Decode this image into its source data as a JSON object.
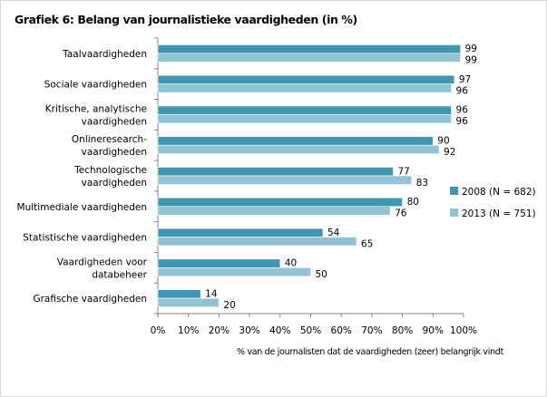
{
  "chart_data": {
    "type": "bar",
    "orientation": "horizontal",
    "title": "Grafiek 6: Belang van journalistieke vaardigheden (in %)",
    "xlabel": "% van de journalisten dat de vaardigheden (zeer) belangrijk vindt",
    "ylabel": "",
    "xlim": [
      0,
      100
    ],
    "x_ticks": [
      "0%",
      "10%",
      "20%",
      "30%",
      "40%",
      "50%",
      "60%",
      "70%",
      "80%",
      "90%",
      "100%"
    ],
    "grid": false,
    "legend_position": "right",
    "categories": [
      [
        "Taalvaardigheden"
      ],
      [
        "Sociale vaardigheden"
      ],
      [
        "Kritische, analytische",
        "vaardigheden"
      ],
      [
        "Onlineresearch-",
        "vaardigheden"
      ],
      [
        "Technologische",
        "vaardigheden"
      ],
      [
        "Multimediale vaardigheden"
      ],
      [
        "Statistische vaardigheden"
      ],
      [
        "Vaardigheden voor",
        "databeheer"
      ],
      [
        "Grafische vaardigheden"
      ]
    ],
    "series": [
      {
        "name": "2008 (N = 682)",
        "color": "#4197b0",
        "values": [
          99,
          97,
          96,
          90,
          77,
          80,
          54,
          40,
          14
        ]
      },
      {
        "name": "2013 (N = 751)",
        "color": "#92c3d5",
        "values": [
          99,
          96,
          96,
          92,
          83,
          76,
          65,
          50,
          20
        ]
      }
    ]
  }
}
